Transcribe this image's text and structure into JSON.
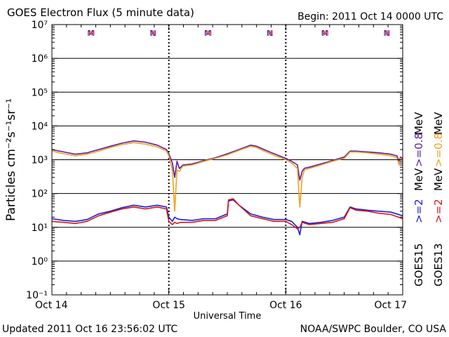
{
  "header": {
    "title": "GOES Electron Flux (5 minute data)",
    "begin": "Begin: 2011 Oct 14 0000 UTC"
  },
  "footer": {
    "updated": "Updated 2011 Oct 16 23:56:02 UTC",
    "credit": "NOAA/SWPC Boulder, CO USA"
  },
  "colors": {
    "goes15_gt0_8": "#5a1aa8",
    "goes13_gt0_8": "#f0a020",
    "goes15_gt2": "#1020e0",
    "goes13_gt2": "#e01010",
    "goes15_label": "#000000",
    "goes13_label": "#000000",
    "grid": "#000000",
    "threshold_line": "#000000"
  },
  "chart_data": {
    "type": "line",
    "title": "GOES Electron Flux (5 minute data)",
    "xlabel": "Universal Time",
    "ylabel": "Particles cm⁻²s⁻¹sr⁻¹",
    "yscale": "log",
    "ylim": [
      0.1,
      10000000
    ],
    "xlim": [
      0,
      3
    ],
    "x_ticks": [
      "Oct 14",
      "Oct 15",
      "Oct 16",
      "Oct 17"
    ],
    "y_ticks": [
      "10⁻¹",
      "10⁰",
      "10¹",
      "10²",
      "10³",
      "10⁴",
      "10⁵",
      "10⁶",
      "10⁷"
    ],
    "y_tick_values": [
      0.1,
      1,
      10,
      100,
      1000,
      10000,
      100000,
      1000000,
      10000000
    ],
    "threshold": 1000,
    "grid": true,
    "legend_placement": "right",
    "legend": [
      {
        "text": ">=0.8 MeV",
        "series": "GOES15 >=0.8 MeV"
      },
      {
        "text": ">=0.8 MeV",
        "series": "GOES13 >=0.8 MeV"
      },
      {
        "text": ">=2 MeV",
        "series": "GOES15 >=2 MeV"
      },
      {
        "text": ">=2 MeV",
        "series": "GOES13 >=2 MeV"
      }
    ],
    "satellite_labels": [
      "GOES15",
      "GOES13"
    ],
    "mev_label": "MeV",
    "ge08_label": ">=0.8",
    "ge2_label": ">=2",
    "markers": [
      {
        "x": 0.33,
        "text": "M",
        "sat": "GOES15"
      },
      {
        "x": 0.34,
        "text": "M",
        "sat": "GOES13"
      },
      {
        "x": 0.86,
        "text": "N",
        "sat": "GOES15"
      },
      {
        "x": 0.87,
        "text": "N",
        "sat": "GOES13"
      },
      {
        "x": 1.33,
        "text": "M",
        "sat": "GOES15"
      },
      {
        "x": 1.34,
        "text": "M",
        "sat": "GOES13"
      },
      {
        "x": 1.86,
        "text": "N",
        "sat": "GOES15"
      },
      {
        "x": 1.87,
        "text": "N",
        "sat": "GOES13"
      },
      {
        "x": 2.33,
        "text": "M",
        "sat": "GOES15"
      },
      {
        "x": 2.34,
        "text": "M",
        "sat": "GOES13"
      },
      {
        "x": 2.86,
        "text": "N",
        "sat": "GOES15"
      },
      {
        "x": 2.87,
        "text": "N",
        "sat": "GOES13"
      }
    ],
    "series": [
      {
        "name": "GOES15 >=0.8 MeV",
        "color": "#5a1aa8",
        "x": [
          0,
          0.1,
          0.2,
          0.3,
          0.4,
          0.5,
          0.6,
          0.7,
          0.8,
          0.9,
          0.98,
          1.0,
          1.03,
          1.05,
          1.07,
          1.09,
          1.12,
          1.2,
          1.3,
          1.4,
          1.5,
          1.6,
          1.7,
          1.75,
          1.8,
          1.9,
          2.0,
          2.05,
          2.1,
          2.12,
          2.14,
          2.16,
          2.2,
          2.3,
          2.4,
          2.5,
          2.55,
          2.6,
          2.7,
          2.8,
          2.9,
          2.95,
          2.97,
          2.98,
          3.0
        ],
        "y": [
          2000,
          1700,
          1450,
          1600,
          2000,
          2500,
          3100,
          3600,
          3300,
          2700,
          2000,
          1500,
          800,
          300,
          900,
          550,
          700,
          750,
          950,
          1150,
          1500,
          2000,
          2700,
          2500,
          2100,
          1500,
          1100,
          900,
          700,
          250,
          450,
          560,
          600,
          750,
          950,
          1200,
          1800,
          1800,
          1700,
          1600,
          1450,
          1300,
          900,
          1200,
          1100
        ]
      },
      {
        "name": "GOES13 >=0.8 MeV",
        "color": "#f0a020",
        "x": [
          0,
          0.1,
          0.2,
          0.3,
          0.4,
          0.5,
          0.6,
          0.7,
          0.8,
          0.9,
          0.98,
          1.0,
          1.03,
          1.05,
          1.07,
          1.09,
          1.12,
          1.2,
          1.3,
          1.4,
          1.5,
          1.6,
          1.7,
          1.75,
          1.8,
          1.9,
          2.0,
          2.05,
          2.1,
          2.12,
          2.14,
          2.16,
          2.2,
          2.3,
          2.4,
          2.5,
          2.55,
          2.6,
          2.7,
          2.8,
          2.9,
          2.95,
          2.97,
          2.98,
          3.0
        ],
        "y": [
          1800,
          1500,
          1300,
          1450,
          1800,
          2300,
          2800,
          3200,
          2900,
          2400,
          1800,
          1300,
          500,
          30,
          500,
          450,
          650,
          700,
          900,
          1100,
          1400,
          1900,
          2500,
          2300,
          1900,
          1350,
          1000,
          800,
          550,
          40,
          300,
          500,
          550,
          700,
          900,
          1100,
          1700,
          1700,
          1600,
          1450,
          1300,
          1150,
          700,
          1100,
          1000
        ]
      },
      {
        "name": "GOES15 >=2 MeV",
        "color": "#1020e0",
        "x": [
          0,
          0.1,
          0.2,
          0.3,
          0.4,
          0.5,
          0.6,
          0.7,
          0.8,
          0.9,
          0.98,
          1.0,
          1.03,
          1.05,
          1.07,
          1.1,
          1.2,
          1.3,
          1.4,
          1.5,
          1.51,
          1.55,
          1.6,
          1.7,
          1.8,
          1.9,
          2.0,
          2.05,
          2.1,
          2.12,
          2.14,
          2.2,
          2.3,
          2.4,
          2.5,
          2.55,
          2.6,
          2.7,
          2.8,
          2.9,
          3.0
        ],
        "y": [
          18,
          16,
          15,
          17,
          25,
          30,
          38,
          45,
          40,
          45,
          40,
          20,
          15,
          20,
          18,
          17,
          16,
          18,
          18,
          25,
          60,
          65,
          45,
          25,
          20,
          17,
          17,
          15,
          10,
          6,
          15,
          13,
          14,
          16,
          20,
          40,
          35,
          32,
          30,
          28,
          22
        ]
      },
      {
        "name": "GOES13 >=2 MeV",
        "color": "#e01010",
        "x": [
          0,
          0.1,
          0.2,
          0.3,
          0.4,
          0.5,
          0.6,
          0.7,
          0.8,
          0.9,
          0.98,
          1.0,
          1.03,
          1.05,
          1.07,
          1.1,
          1.2,
          1.3,
          1.4,
          1.5,
          1.51,
          1.55,
          1.6,
          1.7,
          1.8,
          1.9,
          2.0,
          2.05,
          2.1,
          2.12,
          2.14,
          2.2,
          2.3,
          2.4,
          2.5,
          2.55,
          2.6,
          2.7,
          2.8,
          2.9,
          3.0
        ],
        "y": [
          15,
          14,
          13,
          15,
          22,
          28,
          35,
          40,
          35,
          40,
          35,
          15,
          12,
          14,
          13,
          14,
          14,
          16,
          16,
          22,
          65,
          70,
          45,
          22,
          18,
          15,
          15,
          12,
          9,
          10,
          14,
          12,
          13,
          14,
          18,
          38,
          32,
          30,
          26,
          24,
          18
        ]
      }
    ]
  }
}
